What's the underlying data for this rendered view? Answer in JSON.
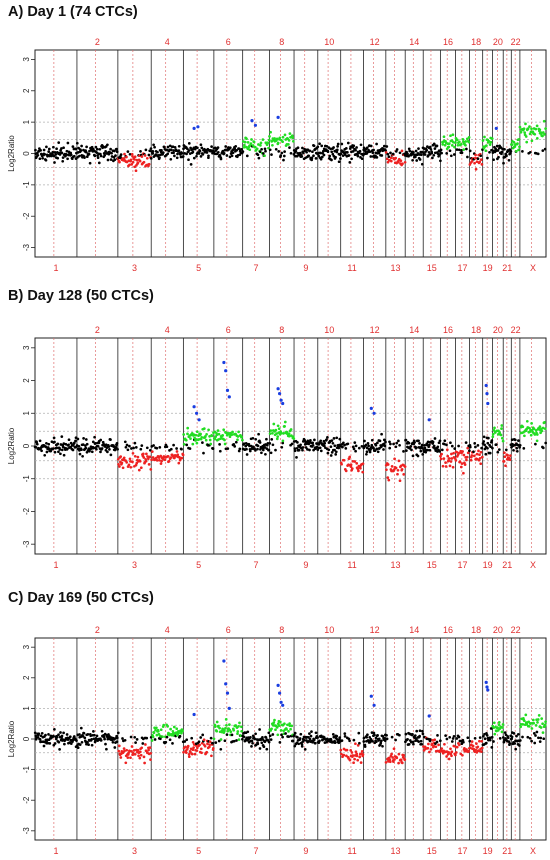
{
  "chart_data": [
    {
      "type": "scatter",
      "title": "A) Day 1 (74 CTCs)",
      "ylabel": "Log2Ratio",
      "ylim": [
        -3.3,
        3.3
      ],
      "yticks": [
        3,
        2,
        1,
        0,
        -1,
        -2,
        -3
      ],
      "ref_lines": [
        1,
        0.45,
        -0.45,
        -1
      ],
      "chromosomes_top": [
        "2",
        "4",
        "6",
        "8",
        "10",
        "12",
        "14",
        "16",
        "18",
        "20",
        "22"
      ],
      "chromosomes_bottom": [
        "1",
        "3",
        "5",
        "7",
        "9",
        "11",
        "13",
        "15",
        "17",
        "19",
        "21",
        "X"
      ],
      "segments": [
        {
          "chrom": "1",
          "state": "neutral",
          "level": 0.0
        },
        {
          "chrom": "2",
          "state": "neutral",
          "level": 0.05
        },
        {
          "chrom": "3",
          "state": "loss",
          "level": -0.25
        },
        {
          "chrom": "4",
          "state": "neutral",
          "level": 0.0
        },
        {
          "chrom": "5",
          "state": "neutral",
          "level": 0.05
        },
        {
          "chrom": "6",
          "state": "neutral",
          "level": 0.05
        },
        {
          "chrom": "7",
          "state": "gain",
          "level": 0.3
        },
        {
          "chrom": "8",
          "state": "gain",
          "level": 0.45
        },
        {
          "chrom": "9",
          "state": "neutral",
          "level": 0.05
        },
        {
          "chrom": "10",
          "state": "neutral",
          "level": 0.0
        },
        {
          "chrom": "11",
          "state": "neutral",
          "level": 0.05
        },
        {
          "chrom": "12",
          "state": "neutral",
          "level": 0.1
        },
        {
          "chrom": "13",
          "state": "loss",
          "level": -0.25
        },
        {
          "chrom": "14",
          "state": "neutral",
          "level": 0.0
        },
        {
          "chrom": "15",
          "state": "neutral",
          "level": 0.05
        },
        {
          "chrom": "16",
          "state": "gain",
          "level": 0.3
        },
        {
          "chrom": "17",
          "state": "gain",
          "level": 0.35
        },
        {
          "chrom": "18",
          "state": "loss",
          "level": -0.2
        },
        {
          "chrom": "19",
          "state": "gain",
          "level": 0.35
        },
        {
          "chrom": "20",
          "state": "neutral",
          "level": 0.1
        },
        {
          "chrom": "21",
          "state": "neutral",
          "level": 0.0
        },
        {
          "chrom": "22",
          "state": "gain",
          "level": 0.3
        },
        {
          "chrom": "X",
          "state": "gain",
          "level": 0.7
        }
      ],
      "amplifications": [
        {
          "chrom": "5",
          "values": [
            0.8,
            0.85
          ]
        },
        {
          "chrom": "7",
          "values": [
            1.05,
            0.9
          ]
        },
        {
          "chrom": "8",
          "values": [
            1.15
          ]
        },
        {
          "chrom": "20",
          "values": [
            0.8
          ]
        }
      ]
    },
    {
      "type": "scatter",
      "title": "B) Day 128 (50 CTCs)",
      "ylabel": "Log2Ratio",
      "ylim": [
        -3.3,
        3.3
      ],
      "yticks": [
        3,
        2,
        1,
        0,
        -1,
        -2,
        -3
      ],
      "ref_lines": [
        1,
        0.45,
        -0.45,
        -1
      ],
      "chromosomes_top": [
        "2",
        "4",
        "6",
        "8",
        "10",
        "12",
        "14",
        "16",
        "18",
        "20",
        "22"
      ],
      "chromosomes_bottom": [
        "1",
        "3",
        "5",
        "7",
        "9",
        "11",
        "13",
        "15",
        "17",
        "19",
        "21",
        "X"
      ],
      "segments": [
        {
          "chrom": "1",
          "state": "neutral",
          "level": 0.0
        },
        {
          "chrom": "2",
          "state": "neutral",
          "level": 0.0
        },
        {
          "chrom": "3",
          "state": "loss",
          "level": -0.45
        },
        {
          "chrom": "4",
          "state": "loss",
          "level": -0.4
        },
        {
          "chrom": "5",
          "state": "gain",
          "level": 0.3
        },
        {
          "chrom": "6",
          "state": "gain",
          "level": 0.3
        },
        {
          "chrom": "7",
          "state": "neutral",
          "level": 0.0
        },
        {
          "chrom": "8",
          "state": "gain",
          "level": 0.4
        },
        {
          "chrom": "9",
          "state": "neutral",
          "level": 0.0
        },
        {
          "chrom": "10",
          "state": "neutral",
          "level": 0.0
        },
        {
          "chrom": "11",
          "state": "loss",
          "level": -0.6
        },
        {
          "chrom": "12",
          "state": "neutral",
          "level": 0.0
        },
        {
          "chrom": "13",
          "state": "loss",
          "level": -0.7
        },
        {
          "chrom": "14",
          "state": "neutral",
          "level": 0.0
        },
        {
          "chrom": "15",
          "state": "neutral",
          "level": 0.0
        },
        {
          "chrom": "16",
          "state": "loss",
          "level": -0.4
        },
        {
          "chrom": "17",
          "state": "loss",
          "level": -0.35
        },
        {
          "chrom": "18",
          "state": "loss",
          "level": -0.35
        },
        {
          "chrom": "19",
          "state": "neutral",
          "level": 0.0
        },
        {
          "chrom": "20",
          "state": "gain",
          "level": 0.4
        },
        {
          "chrom": "21",
          "state": "loss",
          "level": -0.4
        },
        {
          "chrom": "22",
          "state": "neutral",
          "level": 0.0
        },
        {
          "chrom": "X",
          "state": "gain",
          "level": 0.5
        }
      ],
      "amplifications": [
        {
          "chrom": "5",
          "values": [
            1.2,
            1.0,
            0.8
          ]
        },
        {
          "chrom": "6",
          "values": [
            2.55,
            2.3,
            1.7,
            1.5
          ]
        },
        {
          "chrom": "8",
          "values": [
            1.75,
            1.6,
            1.4,
            1.3
          ]
        },
        {
          "chrom": "12",
          "values": [
            1.15,
            1.0
          ]
        },
        {
          "chrom": "15",
          "values": [
            0.8
          ]
        },
        {
          "chrom": "19",
          "values": [
            1.85,
            1.6,
            1.3
          ]
        }
      ]
    },
    {
      "type": "scatter",
      "title": "C) Day 169 (50 CTCs)",
      "ylabel": "Log2Ratio",
      "ylim": [
        -3.3,
        3.3
      ],
      "yticks": [
        3,
        2,
        1,
        0,
        -1,
        -2,
        -3
      ],
      "ref_lines": [
        1,
        0.45,
        -0.45,
        -1
      ],
      "chromosomes_top": [
        "2",
        "4",
        "6",
        "8",
        "10",
        "12",
        "14",
        "16",
        "18",
        "20",
        "22"
      ],
      "chromosomes_bottom": [
        "1",
        "3",
        "5",
        "7",
        "9",
        "11",
        "13",
        "15",
        "17",
        "19",
        "21",
        "X"
      ],
      "segments": [
        {
          "chrom": "1",
          "state": "neutral",
          "level": 0.0
        },
        {
          "chrom": "2",
          "state": "neutral",
          "level": 0.0
        },
        {
          "chrom": "3",
          "state": "loss",
          "level": -0.5
        },
        {
          "chrom": "4",
          "state": "gain",
          "level": 0.2
        },
        {
          "chrom": "5",
          "state": "loss",
          "level": -0.3
        },
        {
          "chrom": "6",
          "state": "gain",
          "level": 0.3
        },
        {
          "chrom": "7",
          "state": "neutral",
          "level": 0.0
        },
        {
          "chrom": "8",
          "state": "gain",
          "level": 0.35
        },
        {
          "chrom": "9",
          "state": "neutral",
          "level": 0.0
        },
        {
          "chrom": "10",
          "state": "neutral",
          "level": 0.0
        },
        {
          "chrom": "11",
          "state": "loss",
          "level": -0.5
        },
        {
          "chrom": "12",
          "state": "neutral",
          "level": 0.0
        },
        {
          "chrom": "13",
          "state": "loss",
          "level": -0.6
        },
        {
          "chrom": "14",
          "state": "neutral",
          "level": 0.0
        },
        {
          "chrom": "15",
          "state": "loss",
          "level": -0.3
        },
        {
          "chrom": "16",
          "state": "loss",
          "level": -0.4
        },
        {
          "chrom": "17",
          "state": "loss",
          "level": -0.35
        },
        {
          "chrom": "18",
          "state": "loss",
          "level": -0.3
        },
        {
          "chrom": "19",
          "state": "neutral",
          "level": 0.0
        },
        {
          "chrom": "20",
          "state": "gain",
          "level": 0.4
        },
        {
          "chrom": "21",
          "state": "neutral",
          "level": 0.0
        },
        {
          "chrom": "22",
          "state": "neutral",
          "level": 0.0
        },
        {
          "chrom": "X",
          "state": "gain",
          "level": 0.5
        }
      ],
      "amplifications": [
        {
          "chrom": "5",
          "values": [
            0.8
          ]
        },
        {
          "chrom": "6",
          "values": [
            2.55,
            1.8,
            1.5,
            1.0
          ]
        },
        {
          "chrom": "8",
          "values": [
            1.75,
            1.5,
            1.2,
            1.1
          ]
        },
        {
          "chrom": "12",
          "values": [
            1.4,
            1.1
          ]
        },
        {
          "chrom": "15",
          "values": [
            0.75
          ]
        },
        {
          "chrom": "19",
          "values": [
            1.85,
            1.7,
            1.6
          ]
        }
      ]
    }
  ],
  "colors": {
    "neutral": "#000000",
    "gain": "#22dd22",
    "loss": "#ee2222",
    "amplification": "#1a3ee0",
    "chrom_label": "#e03030",
    "ref_line": "#b0b0b0",
    "centromere": "#e07070",
    "boundary": "#222222"
  }
}
